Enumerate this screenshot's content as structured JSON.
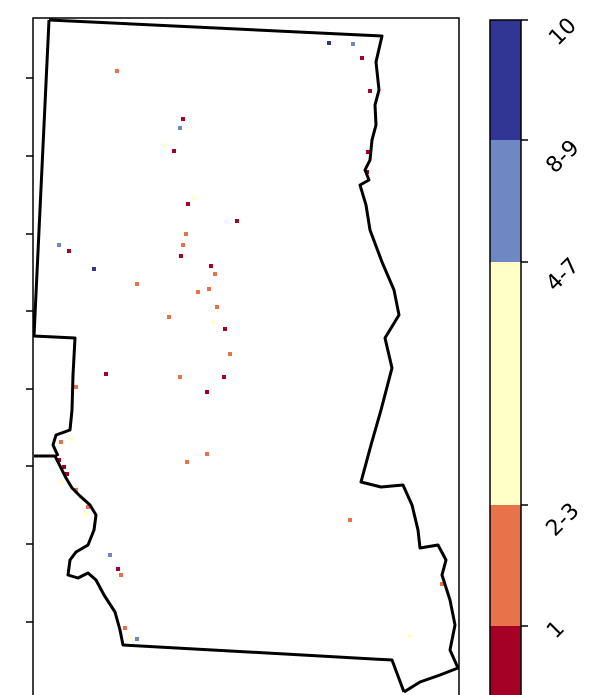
{
  "legend": {
    "title": "",
    "classes": [
      {
        "label": "1",
        "color": "#a50026"
      },
      {
        "label": "2-3",
        "color": "#e8734a"
      },
      {
        "label": "4-7",
        "color": "#ffffc7"
      },
      {
        "label": "8-9",
        "color": "#6e88c4"
      },
      {
        "label": "10",
        "color": "#313695"
      }
    ]
  },
  "map": {
    "boundary_color": "#000000",
    "background": "#ffffff"
  }
}
